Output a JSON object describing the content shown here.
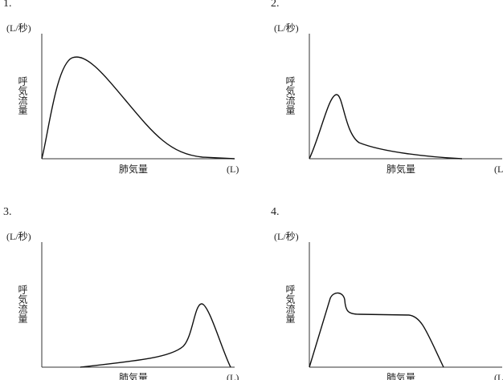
{
  "panels": [
    {
      "number": "1.",
      "y_unit": "(L/秒)",
      "y_label": "呼気流量",
      "x_label": "肺気量",
      "x_unit": "(L)"
    },
    {
      "number": "2.",
      "y_unit": "(L/秒)",
      "y_label": "呼気流量",
      "x_label": "肺気量",
      "x_unit": "(L)"
    },
    {
      "number": "3.",
      "y_unit": "(L/秒)",
      "y_label": "呼気流量",
      "x_label": "肺気量",
      "x_unit": "(L)"
    },
    {
      "number": "4.",
      "y_unit": "(L/秒)",
      "y_label": "呼気流量",
      "x_label": "肺気量",
      "x_unit": "(L)"
    }
  ]
}
